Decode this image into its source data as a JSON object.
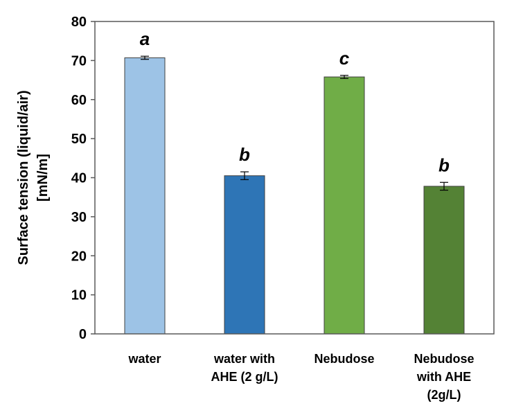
{
  "chart_data": {
    "type": "bar",
    "title": "",
    "xlabel": "",
    "ylabel_lines": [
      "Surface tension (liquid/air)",
      "[mN/m]"
    ],
    "ylim": [
      0,
      80
    ],
    "yticks": [
      0,
      10,
      20,
      30,
      40,
      50,
      60,
      70,
      80
    ],
    "grid": false,
    "legend": "none",
    "categories": [
      [
        "water"
      ],
      [
        "water with",
        "AHE (2 g/L)"
      ],
      [
        "Nebudose"
      ],
      [
        "Nebudose",
        "with AHE",
        "(2g/L)"
      ]
    ],
    "values": [
      70.7,
      40.5,
      65.8,
      37.8
    ],
    "errors": [
      0.4,
      1.0,
      0.4,
      1.0
    ],
    "significance_labels": [
      "a",
      "b",
      "c",
      "b"
    ],
    "colors": [
      "#9dc3e6",
      "#2e75b6",
      "#70ad47",
      "#548235"
    ]
  }
}
